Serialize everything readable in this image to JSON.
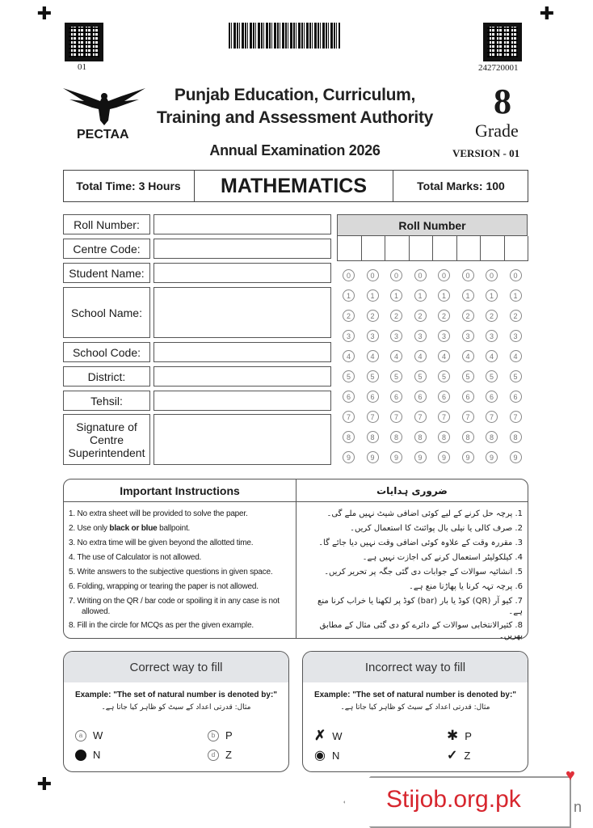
{
  "header": {
    "qr_left_label": "01",
    "qr_right_label": "242720001",
    "logo_text": "PECTAA",
    "authority_line1": "Punjab Education, Curriculum,",
    "authority_line2": "Training and Assessment Authority",
    "exam": "Annual Examination 2026",
    "grade_number": "8",
    "grade_label": "Grade",
    "version": "VERSION - 01"
  },
  "info": {
    "total_time": "Total Time: 3 Hours",
    "subject": "MATHEMATICS",
    "total_marks": "Total Marks: 100"
  },
  "fields": [
    "Roll Number:",
    "Centre Code:",
    "Student Name:",
    "School Name:",
    "School Code:",
    "District:",
    "Tehsil:",
    "Signature of Centre Superintendent"
  ],
  "roll_grid": {
    "title": "Roll Number",
    "digits": [
      "0",
      "1",
      "2",
      "3",
      "4",
      "5",
      "6",
      "7",
      "8",
      "9"
    ],
    "columns": 8
  },
  "instructions": {
    "title_en": "Important Instructions",
    "title_ur": "ضروری ہدایات",
    "en": [
      "1. No extra sheet will be provided to solve the paper.",
      "2. Use only black or blue ballpoint.",
      "3. No extra time will be given beyond the allotted time.",
      "4. The use of Calculator is not allowed.",
      "5. Write answers to the subjective questions in given space.",
      "6. Folding, wrapping or tearing the paper is not allowed.",
      "7. Writing on the QR / bar code or spoiling it in any case is not allowed.",
      "8. Fill in the circle for MCQs as per the given example."
    ],
    "ur": [
      "1. پرچہ حل کرنے کے لیے کوئی اضافی شیٹ نہیں ملے گی۔",
      "2. صرف کالی یا نیلی بال پوائنٹ کا استعمال کریں۔",
      "3. مقررہ وقت کے علاوہ کوئی اضافی وقت نہیں دیا جائے گا۔",
      "4. کیلکولیٹر استعمال کرنے کی اجازت نہیں ہے۔",
      "5. انشائیہ سوالات کے جوابات دی گئی جگہ پر تحریر کریں۔",
      "6. پرچہ تہہ کرنا یا پھاڑنا منع ہے۔",
      "7. کیو آر (QR) کوڈ یا بار (bar) کوڈ پر لکھنا یا خراب کرنا منع ہے۔",
      "8. کثیرالانتخابی سوالات کے دائرے کو دی گئی مثال کے مطابق بھریں۔"
    ]
  },
  "correct": {
    "title": "Correct way to fill",
    "example": "Example: \"The set of natural number is denoted by:\"",
    "example_ur": "مثال: قدرتی اعداد کے سیٹ کو ظاہر کیا جاتا ہے۔",
    "options": [
      {
        "letter": "a",
        "label": "W"
      },
      {
        "letter": "b",
        "label": "P"
      },
      {
        "letter": "c",
        "label": "N"
      },
      {
        "letter": "d",
        "label": "Z"
      }
    ]
  },
  "incorrect": {
    "title": "Incorrect way to fill",
    "example": "Example: \"The set of natural number is denoted by:\"",
    "example_ur": "مثال: قدرتی اعداد کے سیٹ کو ظاہر کیا جاتا ہے۔",
    "options": [
      {
        "mark": "✗",
        "label": "W"
      },
      {
        "mark": "✱",
        "label": "P"
      },
      {
        "mark": "◉",
        "label": "N"
      },
      {
        "mark": "✓",
        "label": "Z"
      }
    ]
  },
  "watermark": {
    "text": "Stijob.org.pk",
    "extra": "n",
    "accent": "#d7262e"
  }
}
